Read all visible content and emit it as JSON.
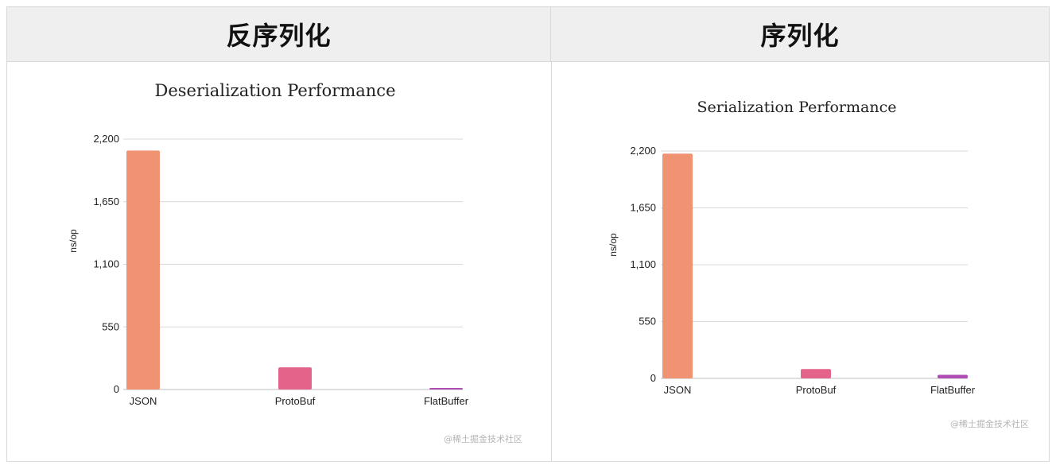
{
  "headers": {
    "left": "反序列化",
    "right": "序列化"
  },
  "watermark": "@稀土掘金技术社区",
  "colors": {
    "json": "#EF9373",
    "protobuf": "#E3638A",
    "flatbuffer": "#B04DB5",
    "grid": "#d9d9d9",
    "header_bg": "#efefef"
  },
  "chart_data": [
    {
      "type": "bar",
      "title": "Deserialization Performance",
      "xlabel": "",
      "ylabel": "ns/op",
      "categories": [
        "JSON",
        "ProtoBuf",
        "FlatBuffer"
      ],
      "values": [
        2100,
        195,
        10
      ],
      "colors": [
        "#EF9373",
        "#E3638A",
        "#B04DB5"
      ],
      "ylim": [
        0,
        2200
      ],
      "yticks": [
        0,
        550,
        1100,
        1650,
        2200
      ],
      "ytick_labels": [
        "0",
        "550",
        "1,100",
        "1,650",
        "2,200"
      ],
      "grid": true,
      "legend": "none"
    },
    {
      "type": "bar",
      "title": "Serialization Performance",
      "xlabel": "",
      "ylabel": "ns/op",
      "categories": [
        "JSON",
        "ProtoBuf",
        "FlatBuffer"
      ],
      "values": [
        2175,
        90,
        35
      ],
      "colors": [
        "#EF9373",
        "#E3638A",
        "#B04DB5"
      ],
      "ylim": [
        0,
        2200
      ],
      "yticks": [
        0,
        550,
        1100,
        1650,
        2200
      ],
      "ytick_labels": [
        "0",
        "550",
        "1,100",
        "1,650",
        "2,200"
      ],
      "grid": true,
      "legend": "none"
    }
  ]
}
